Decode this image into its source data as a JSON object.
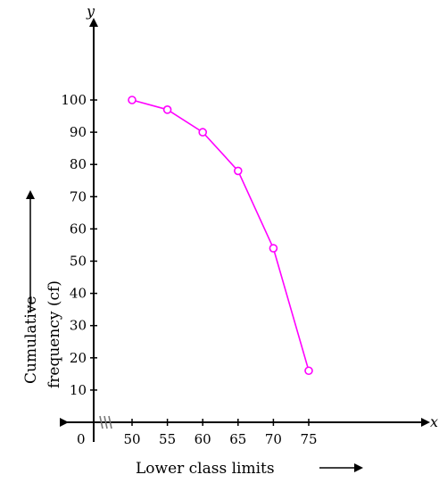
{
  "chart_data": {
    "type": "line",
    "title": "",
    "xlabel": "Lower class limits",
    "ylabel_line1": "Cumulative",
    "ylabel_line2": "frequency (cf)",
    "x_axis_letter": "x",
    "y_axis_letter": "y",
    "origin_label": "0",
    "x_ticks": [
      50,
      55,
      60,
      65,
      70,
      75
    ],
    "y_ticks": [
      10,
      20,
      30,
      40,
      50,
      60,
      70,
      80,
      90,
      100
    ],
    "xlim": [
      50,
      75
    ],
    "ylim": [
      0,
      100
    ],
    "axis_break": true,
    "grid": false,
    "series": [
      {
        "color": "#ff00ff",
        "marker": "open-circle",
        "points": [
          {
            "x": 50,
            "y": 100
          },
          {
            "x": 55,
            "y": 97
          },
          {
            "x": 60,
            "y": 90
          },
          {
            "x": 65,
            "y": 78
          },
          {
            "x": 70,
            "y": 54
          },
          {
            "x": 75,
            "y": 16
          }
        ]
      }
    ]
  }
}
